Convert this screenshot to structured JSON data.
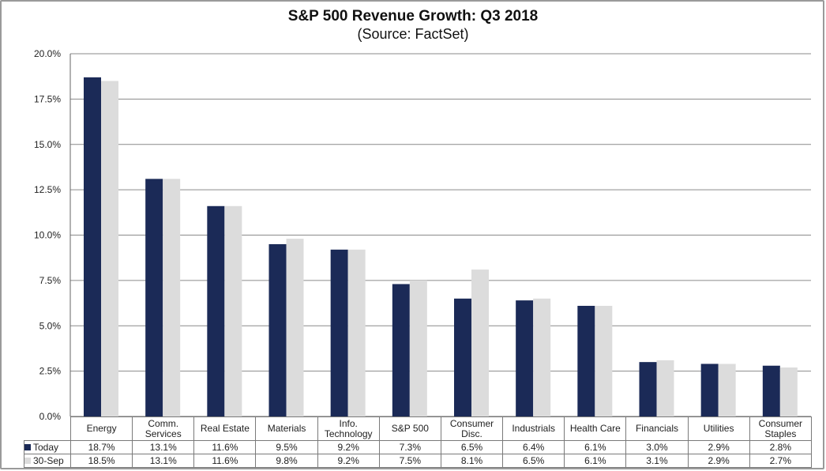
{
  "chart_data": {
    "type": "bar",
    "title": "S&P 500 Revenue Growth: Q3 2018",
    "subtitle": "(Source: FactSet)",
    "xlabel": "",
    "ylabel": "",
    "ylim": [
      0,
      20
    ],
    "yticks": [
      0,
      2.5,
      5,
      7.5,
      10,
      12.5,
      15,
      17.5,
      20
    ],
    "ytick_labels": [
      "0.0%",
      "2.5%",
      "5.0%",
      "7.5%",
      "10.0%",
      "12.5%",
      "15.0%",
      "17.5%",
      "20.0%"
    ],
    "grid": true,
    "legend": "data-table",
    "categories": [
      "Energy",
      "Comm. Services",
      "Real Estate",
      "Materials",
      "Info. Technology",
      "S&P 500",
      "Consumer Disc.",
      "Industrials",
      "Health Care",
      "Financials",
      "Utilities",
      "Consumer Staples"
    ],
    "category_lines": [
      [
        "Energy"
      ],
      [
        "Comm.",
        "Services"
      ],
      [
        "Real Estate"
      ],
      [
        "Materials"
      ],
      [
        "Info.",
        "Technology"
      ],
      [
        "S&P 500"
      ],
      [
        "Consumer",
        "Disc."
      ],
      [
        "Industrials"
      ],
      [
        "Health Care"
      ],
      [
        "Financials"
      ],
      [
        "Utilities"
      ],
      [
        "Consumer",
        "Staples"
      ]
    ],
    "series": [
      {
        "name": "Today",
        "color": "#1b2a57",
        "values": [
          18.7,
          13.1,
          11.6,
          9.5,
          9.2,
          7.3,
          6.5,
          6.4,
          6.1,
          3.0,
          2.9,
          2.8
        ],
        "labels": [
          "18.7%",
          "13.1%",
          "11.6%",
          "9.5%",
          "9.2%",
          "7.3%",
          "6.5%",
          "6.4%",
          "6.1%",
          "3.0%",
          "2.9%",
          "2.8%"
        ]
      },
      {
        "name": "30-Sep",
        "color": "#dcdcdc",
        "values": [
          18.5,
          13.1,
          11.6,
          9.8,
          9.2,
          7.5,
          8.1,
          6.5,
          6.1,
          3.1,
          2.9,
          2.7
        ],
        "labels": [
          "18.5%",
          "13.1%",
          "11.6%",
          "9.8%",
          "9.2%",
          "7.5%",
          "8.1%",
          "6.5%",
          "6.1%",
          "3.1%",
          "2.9%",
          "2.7%"
        ]
      }
    ]
  }
}
